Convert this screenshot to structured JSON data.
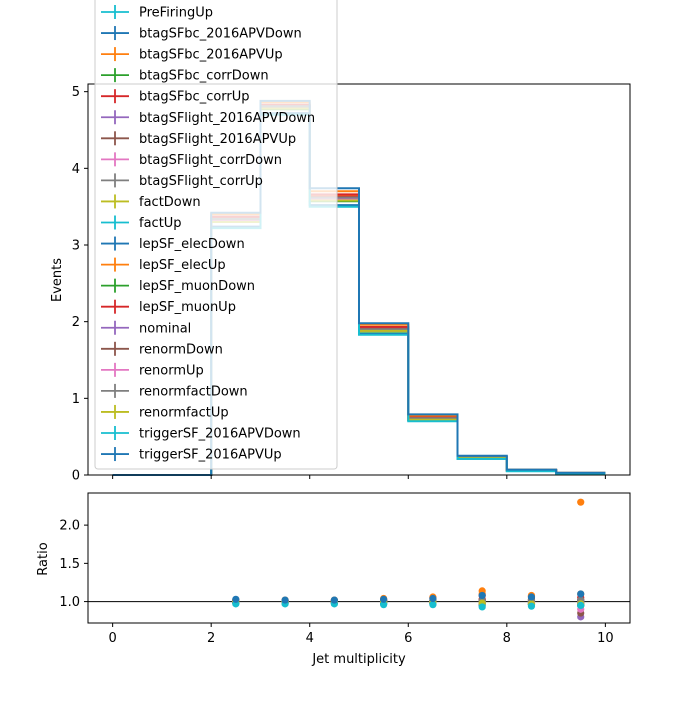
{
  "chart_data": [
    {
      "type": "line",
      "panel": "main",
      "drawstyle": "steps",
      "xlabel": "",
      "ylabel": "Events",
      "xlim": [
        -0.5,
        10.5
      ],
      "ylim": [
        0,
        5.1
      ],
      "bin_edges": [
        0,
        1,
        2,
        3,
        4,
        5,
        6,
        7,
        8,
        9,
        10
      ],
      "yticks": [
        0,
        1,
        2,
        3,
        4,
        5
      ],
      "ytick_labels": [
        "0",
        "1",
        "2",
        "3",
        "4",
        "5"
      ],
      "legend": {
        "placement": "top-left, extends above plot area"
      },
      "series": [
        {
          "name": "PreFiringUp",
          "color": "#17becf",
          "values": [
            0,
            0,
            3.32,
            4.79,
            3.6,
            1.89,
            0.73,
            0.22,
            0.06,
            0.02
          ]
        },
        {
          "name": "btagSFbc_2016APVDown",
          "color": "#1f77b4",
          "values": [
            0,
            0,
            3.3,
            4.78,
            3.58,
            1.88,
            0.72,
            0.22,
            0.06,
            0.02
          ]
        },
        {
          "name": "btagSFbc_2016APVUp",
          "color": "#ff7f0e",
          "values": [
            0,
            0,
            3.36,
            4.82,
            3.64,
            1.92,
            0.75,
            0.23,
            0.06,
            0.02
          ]
        },
        {
          "name": "btagSFbc_corrDown",
          "color": "#2ca02c",
          "values": [
            0,
            0,
            3.3,
            4.77,
            3.57,
            1.87,
            0.72,
            0.22,
            0.06,
            0.02
          ]
        },
        {
          "name": "btagSFbc_corrUp",
          "color": "#d62728",
          "values": [
            0,
            0,
            3.37,
            4.83,
            3.66,
            1.93,
            0.76,
            0.23,
            0.06,
            0.02
          ]
        },
        {
          "name": "btagSFlight_2016APVDown",
          "color": "#9467bd",
          "values": [
            0,
            0,
            3.32,
            4.79,
            3.6,
            1.89,
            0.73,
            0.22,
            0.06,
            0.02
          ]
        },
        {
          "name": "btagSFlight_2016APVUp",
          "color": "#8c564b",
          "values": [
            0,
            0,
            3.33,
            4.8,
            3.61,
            1.9,
            0.74,
            0.22,
            0.06,
            0.02
          ]
        },
        {
          "name": "btagSFlight_corrDown",
          "color": "#e377c2",
          "values": [
            0,
            0,
            3.31,
            4.78,
            3.59,
            1.88,
            0.73,
            0.22,
            0.06,
            0.02
          ]
        },
        {
          "name": "btagSFlight_corrUp",
          "color": "#7f7f7f",
          "values": [
            0,
            0,
            3.34,
            4.81,
            3.62,
            1.91,
            0.74,
            0.22,
            0.06,
            0.02
          ]
        },
        {
          "name": "factDown",
          "color": "#bcbd22",
          "values": [
            0,
            0,
            3.33,
            4.8,
            3.61,
            1.9,
            0.74,
            0.22,
            0.06,
            0.02
          ]
        },
        {
          "name": "factUp",
          "color": "#17becf",
          "values": [
            0,
            0,
            3.31,
            4.79,
            3.6,
            1.89,
            0.73,
            0.22,
            0.06,
            0.02
          ]
        },
        {
          "name": "lepSF_elecDown",
          "color": "#1f77b4",
          "values": [
            0,
            0,
            3.24,
            4.72,
            3.52,
            1.84,
            0.71,
            0.21,
            0.06,
            0.02
          ]
        },
        {
          "name": "lepSF_elecUp",
          "color": "#ff7f0e",
          "values": [
            0,
            0,
            3.4,
            4.86,
            3.7,
            1.96,
            0.77,
            0.24,
            0.07,
            0.03
          ]
        },
        {
          "name": "lepSF_muonDown",
          "color": "#2ca02c",
          "values": [
            0,
            0,
            3.3,
            4.78,
            3.58,
            1.88,
            0.72,
            0.22,
            0.06,
            0.02
          ]
        },
        {
          "name": "lepSF_muonUp",
          "color": "#d62728",
          "values": [
            0,
            0,
            3.35,
            4.82,
            3.63,
            1.91,
            0.75,
            0.23,
            0.06,
            0.02
          ]
        },
        {
          "name": "nominal",
          "color": "#9467bd",
          "values": [
            0,
            0,
            3.32,
            4.8,
            3.6,
            1.89,
            0.73,
            0.22,
            0.06,
            0.02
          ]
        },
        {
          "name": "renormDown",
          "color": "#8c564b",
          "values": [
            0,
            0,
            3.33,
            4.81,
            3.62,
            1.9,
            0.74,
            0.22,
            0.06,
            0.02
          ]
        },
        {
          "name": "renormUp",
          "color": "#e377c2",
          "values": [
            0,
            0,
            3.31,
            4.78,
            3.59,
            1.88,
            0.73,
            0.22,
            0.06,
            0.02
          ]
        },
        {
          "name": "renormfactDown",
          "color": "#7f7f7f",
          "values": [
            0,
            0,
            3.34,
            4.81,
            3.62,
            1.9,
            0.74,
            0.23,
            0.06,
            0.02
          ]
        },
        {
          "name": "renormfactUp",
          "color": "#bcbd22",
          "values": [
            0,
            0,
            3.3,
            4.78,
            3.58,
            1.88,
            0.72,
            0.22,
            0.06,
            0.02
          ]
        },
        {
          "name": "triggerSF_2016APVDown",
          "color": "#17becf",
          "values": [
            0,
            0,
            3.22,
            4.7,
            3.5,
            1.83,
            0.7,
            0.21,
            0.05,
            0.02
          ]
        },
        {
          "name": "triggerSF_2016APVUp",
          "color": "#1f77b4",
          "values": [
            0,
            0,
            3.42,
            4.88,
            3.74,
            1.98,
            0.79,
            0.25,
            0.07,
            0.03
          ]
        }
      ]
    },
    {
      "type": "scatter",
      "panel": "ratio",
      "xlabel": "Jet multiplicity",
      "ylabel": "Ratio",
      "xlim": [
        -0.5,
        10.5
      ],
      "ylim": [
        0.72,
        2.42
      ],
      "xticks": [
        0,
        2,
        4,
        6,
        8,
        10
      ],
      "xtick_labels": [
        "0",
        "2",
        "4",
        "6",
        "8",
        "10"
      ],
      "yticks": [
        1.0,
        1.5,
        2.0
      ],
      "ytick_labels": [
        "1.0",
        "1.5",
        "2.0"
      ],
      "reference_line": 1.0,
      "x": [
        2.5,
        3.5,
        4.5,
        5.5,
        6.5,
        7.5,
        8.5,
        9.5
      ],
      "series": [
        {
          "name": "PreFiringUp",
          "color": "#17becf",
          "values": [
            1.0,
            1.0,
            1.0,
            1.0,
            1.0,
            1.0,
            1.0,
            1.0
          ]
        },
        {
          "name": "btagSFbc_2016APVDown",
          "color": "#1f77b4",
          "values": [
            0.99,
            1.0,
            0.99,
            0.99,
            0.98,
            0.97,
            0.97,
            0.95
          ]
        },
        {
          "name": "btagSFbc_2016APVUp",
          "color": "#ff7f0e",
          "values": [
            1.01,
            1.0,
            1.01,
            1.02,
            1.04,
            1.1,
            1.06,
            1.1
          ]
        },
        {
          "name": "btagSFbc_corrDown",
          "color": "#2ca02c",
          "values": [
            0.99,
            0.99,
            0.99,
            0.99,
            0.98,
            0.97,
            0.96,
            0.95
          ]
        },
        {
          "name": "btagSFbc_corrUp",
          "color": "#d62728",
          "values": [
            1.02,
            1.01,
            1.01,
            1.02,
            1.05,
            1.08,
            1.07,
            1.05
          ]
        },
        {
          "name": "btagSFlight_2016APVDown",
          "color": "#9467bd",
          "values": [
            1.0,
            1.0,
            1.0,
            1.0,
            1.0,
            1.0,
            1.0,
            0.8
          ]
        },
        {
          "name": "btagSFlight_2016APVUp",
          "color": "#8c564b",
          "values": [
            1.0,
            1.0,
            1.0,
            1.01,
            1.01,
            1.02,
            1.03,
            0.85
          ]
        },
        {
          "name": "btagSFlight_corrDown",
          "color": "#e377c2",
          "values": [
            1.0,
            1.0,
            1.0,
            1.0,
            1.0,
            1.0,
            1.0,
            0.9
          ]
        },
        {
          "name": "btagSFlight_corrUp",
          "color": "#7f7f7f",
          "values": [
            1.0,
            1.0,
            1.0,
            1.01,
            1.01,
            1.02,
            1.01,
            1.02
          ]
        },
        {
          "name": "factDown",
          "color": "#bcbd22",
          "values": [
            1.0,
            1.0,
            1.0,
            1.0,
            1.01,
            1.0,
            0.98,
            0.98
          ]
        },
        {
          "name": "factUp",
          "color": "#17becf",
          "values": [
            1.0,
            1.0,
            1.0,
            1.0,
            1.0,
            1.0,
            1.0,
            1.0
          ]
        },
        {
          "name": "lepSF_elecDown",
          "color": "#1f77b4",
          "values": [
            0.98,
            0.98,
            0.98,
            0.97,
            0.97,
            0.95,
            0.96,
            0.97
          ]
        },
        {
          "name": "lepSF_elecUp",
          "color": "#ff7f0e",
          "values": [
            1.02,
            1.02,
            1.02,
            1.04,
            1.06,
            1.14,
            1.08,
            2.3
          ]
        },
        {
          "name": "lepSF_muonDown",
          "color": "#2ca02c",
          "values": [
            0.99,
            0.99,
            0.99,
            0.99,
            0.99,
            0.99,
            0.99,
            0.99
          ]
        },
        {
          "name": "lepSF_muonUp",
          "color": "#d62728",
          "values": [
            1.01,
            1.01,
            1.01,
            1.01,
            1.02,
            1.03,
            1.02,
            1.02
          ]
        },
        {
          "name": "nominal",
          "color": "#9467bd",
          "values": [
            1.0,
            1.0,
            1.0,
            1.0,
            1.0,
            1.0,
            1.0,
            1.0
          ]
        },
        {
          "name": "renormDown",
          "color": "#8c564b",
          "values": [
            1.0,
            1.0,
            1.01,
            1.01,
            1.01,
            1.02,
            1.02,
            1.02
          ]
        },
        {
          "name": "renormUp",
          "color": "#e377c2",
          "values": [
            1.0,
            1.0,
            1.0,
            1.0,
            0.99,
            0.98,
            0.98,
            0.98
          ]
        },
        {
          "name": "renormfactDown",
          "color": "#7f7f7f",
          "values": [
            1.0,
            1.0,
            1.01,
            1.01,
            1.01,
            1.01,
            1.02,
            1.02
          ]
        },
        {
          "name": "renormfactUp",
          "color": "#bcbd22",
          "values": [
            1.0,
            1.0,
            1.0,
            1.0,
            0.99,
            0.98,
            0.97,
            0.97
          ]
        },
        {
          "name": "triggerSF_2016APVDown",
          "color": "#17becf",
          "values": [
            0.97,
            0.97,
            0.97,
            0.96,
            0.96,
            0.93,
            0.94,
            0.95
          ]
        },
        {
          "name": "triggerSF_2016APVUp",
          "color": "#1f77b4",
          "values": [
            1.03,
            1.02,
            1.02,
            1.03,
            1.04,
            1.08,
            1.06,
            1.1
          ]
        }
      ]
    }
  ]
}
